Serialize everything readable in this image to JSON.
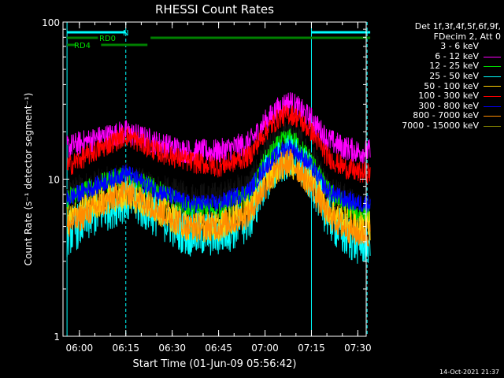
{
  "chart_data": {
    "type": "line",
    "title": "RHESSI Count Rates",
    "xlabel": "Start Time (01-Jun-09 05:56:42)",
    "ylabel": "Count Rate (s⁻¹ detector segment⁻¹)",
    "yscale": "log",
    "ylim": [
      1,
      100
    ],
    "y_ticks": [
      "1",
      "10",
      "100"
    ],
    "x_range_minutes": [
      -2,
      96
    ],
    "x_ticks": [
      "06:00",
      "06:15",
      "06:30",
      "06:45",
      "07:00",
      "07:15",
      "07:30"
    ],
    "legend_placement": "right",
    "series": [
      {
        "name": "3 - 6 keV",
        "color": "#000000",
        "x_time": [
          "05:56",
          "06:05",
          "06:15",
          "06:25",
          "06:35",
          "06:45",
          "06:55",
          "07:00",
          "07:05",
          "07:08",
          "07:10",
          "07:15",
          "07:20",
          "07:25",
          "07:30",
          "07:34"
        ],
        "values": [
          8,
          9,
          10,
          8.5,
          7.5,
          7.5,
          9,
          14,
          18,
          19,
          18,
          14,
          9,
          7.5,
          6.5,
          6
        ]
      },
      {
        "name": "6 - 12 keV",
        "color": "#ff00ff",
        "x_time": [
          "05:56",
          "06:05",
          "06:15",
          "06:25",
          "06:35",
          "06:45",
          "06:55",
          "07:00",
          "07:05",
          "07:08",
          "07:10",
          "07:15",
          "07:20",
          "07:25",
          "07:30",
          "07:34"
        ],
        "values": [
          16,
          18,
          20,
          17,
          15,
          15,
          17,
          23,
          29,
          31,
          29,
          24,
          18,
          16,
          15,
          15
        ]
      },
      {
        "name": "12 - 25 keV",
        "color": "#00e000",
        "x_time": [
          "05:56",
          "06:05",
          "06:15",
          "06:25",
          "06:35",
          "06:45",
          "06:55",
          "07:00",
          "07:05",
          "07:08",
          "07:10",
          "07:15",
          "07:20",
          "07:25",
          "07:30",
          "07:34"
        ],
        "values": [
          7.5,
          9,
          10.5,
          8.5,
          6.5,
          6.5,
          8,
          13,
          17,
          18,
          17,
          13,
          8.5,
          7,
          6,
          6
        ]
      },
      {
        "name": "25 - 50 keV",
        "color": "#00ffff",
        "x_time": [
          "05:56",
          "06:05",
          "06:15",
          "06:25",
          "06:35",
          "06:45",
          "06:55",
          "07:00",
          "07:05",
          "07:08",
          "07:10",
          "07:15",
          "07:20",
          "07:25",
          "07:30",
          "07:34"
        ],
        "values": [
          4.5,
          6,
          7.5,
          6,
          4.5,
          4.5,
          5.5,
          10,
          13,
          14,
          13,
          10,
          6,
          4.5,
          4,
          4
        ]
      },
      {
        "name": "50 - 100 keV",
        "color": "#ffd000",
        "x_time": [
          "05:56",
          "06:05",
          "06:15",
          "06:25",
          "06:35",
          "06:45",
          "06:55",
          "07:00",
          "07:05",
          "07:08",
          "07:10",
          "07:15",
          "07:20",
          "07:25",
          "07:30",
          "07:34"
        ],
        "values": [
          5.5,
          7,
          8,
          6.5,
          5,
          5,
          6.5,
          10,
          12,
          13,
          12,
          10,
          6.5,
          5.5,
          5,
          5
        ]
      },
      {
        "name": "100 - 300 keV",
        "color": "#ff0000",
        "x_time": [
          "05:56",
          "06:05",
          "06:15",
          "06:25",
          "06:35",
          "06:45",
          "06:55",
          "07:00",
          "07:05",
          "07:08",
          "07:10",
          "07:15",
          "07:20",
          "07:25",
          "07:30",
          "07:34"
        ],
        "values": [
          12,
          15,
          19,
          15,
          13,
          12,
          14,
          20,
          25,
          26,
          25,
          20,
          14,
          12,
          11,
          11
        ]
      },
      {
        "name": "300 - 800 keV",
        "color": "#0000ff",
        "x_time": [
          "05:56",
          "06:05",
          "06:15",
          "06:25",
          "06:35",
          "06:45",
          "06:55",
          "07:00",
          "07:05",
          "07:08",
          "07:10",
          "07:15",
          "07:20",
          "07:25",
          "07:30",
          "07:34"
        ],
        "values": [
          7.5,
          9,
          11,
          8.5,
          7,
          7,
          8.5,
          12,
          15,
          16,
          15,
          12,
          8.5,
          7.5,
          7,
          7
        ]
      },
      {
        "name": "800 - 7000 keV",
        "color": "#ff8c00",
        "x_time": [
          "05:56",
          "06:05",
          "06:15",
          "06:25",
          "06:35",
          "06:45",
          "06:55",
          "07:00",
          "07:05",
          "07:08",
          "07:10",
          "07:15",
          "07:20",
          "07:25",
          "07:30",
          "07:34"
        ],
        "values": [
          5,
          6.5,
          8.5,
          6.5,
          5,
          5,
          6,
          9,
          12,
          13,
          12,
          9,
          6,
          5,
          4.5,
          4.5
        ]
      },
      {
        "name": "7000 - 15000 keV",
        "color": "#808000",
        "x_time": [],
        "values": []
      }
    ],
    "legend_header": [
      "Det 1f,3f,4f,5f,6f,9f,",
      "FDecim 2, Att 0"
    ],
    "flags": [
      {
        "label": "N",
        "color": "#00ffff",
        "segments": [
          [
            "05:56",
            "06:15"
          ],
          [
            "07:15",
            "07:34"
          ]
        ]
      },
      {
        "label": "RD0",
        "color": "#008000",
        "segments": [
          [
            "05:56",
            "06:06"
          ],
          [
            "06:23",
            "07:34"
          ]
        ]
      },
      {
        "label": "RD4",
        "color": "#008000",
        "segments": [
          [
            "05:56",
            "05:59"
          ],
          [
            "06:07",
            "06:22"
          ]
        ]
      }
    ],
    "markers": {
      "solid_cyan": [
        "05:56",
        "07:15"
      ],
      "dashed_cyan": [
        "06:15",
        "07:33"
      ]
    },
    "timestamp": "14-Oct-2021 21:37"
  }
}
